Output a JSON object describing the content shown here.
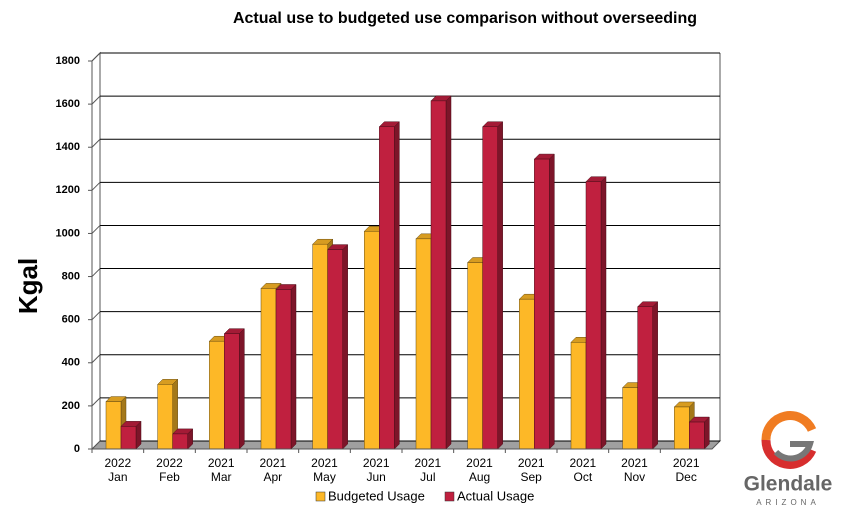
{
  "chart_data": {
    "type": "bar3d",
    "title": "Actual use to budgeted use comparison without overseeding",
    "y_label": "Kgal",
    "categories": [
      "Jan",
      "Feb",
      "Mar",
      "Apr",
      "May",
      "Jun",
      "Jul",
      "Aug",
      "Sep",
      "Oct",
      "Nov",
      "Dec"
    ],
    "category_years": [
      "2022",
      "2022",
      "2021",
      "2021",
      "2021",
      "2021",
      "2021",
      "2021",
      "2021",
      "2021",
      "2021",
      "2021"
    ],
    "series": [
      {
        "name": "Budgeted Usage",
        "color": "#fdb827",
        "values": [
          220,
          300,
          500,
          745,
          950,
          1010,
          975,
          865,
          695,
          495,
          285,
          195
        ]
      },
      {
        "name": "Actual Usage",
        "color": "#c0203f",
        "values": [
          105,
          70,
          535,
          740,
          925,
          1495,
          1615,
          1495,
          1345,
          1240,
          660,
          125
        ]
      }
    ],
    "ylim": [
      0,
      1800
    ],
    "yticks": [
      0,
      200,
      400,
      600,
      800,
      1000,
      1200,
      1400,
      1600,
      1800
    ],
    "grid": true,
    "legend": "bottom"
  },
  "logo": {
    "name": "Glendale",
    "subtitle": "ARIZONA"
  }
}
